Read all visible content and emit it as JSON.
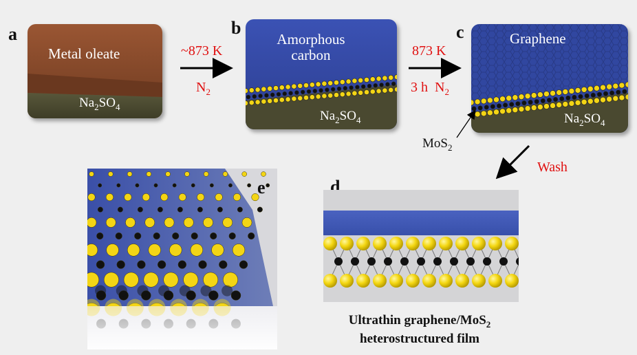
{
  "panels": {
    "a": {
      "letter": "a",
      "layer_top": "Metal oleate",
      "substrate": "Na2SO4",
      "substrate_base": "Na",
      "substrate_sub": "2",
      "substrate_rest": "SO",
      "substrate_sub2": "4"
    },
    "b": {
      "letter": "b",
      "layer_top_line1": "Amorphous",
      "layer_top_line2": "carbon",
      "substrate_base": "Na",
      "substrate_sub": "2",
      "substrate_rest": "SO",
      "substrate_sub2": "4"
    },
    "c": {
      "letter": "c",
      "layer_top": "Graphene",
      "substrate_base": "Na",
      "substrate_sub": "2",
      "substrate_rest": "SO",
      "substrate_sub2": "4"
    },
    "d": {
      "letter": "d"
    },
    "e": {
      "letter": "e"
    }
  },
  "steps": {
    "ab": {
      "temp": "~873 K",
      "gas_base": "N",
      "gas_sub": "2"
    },
    "bc": {
      "temp": "873 K",
      "time": "3 h",
      "gas_base": "N",
      "gas_sub": "2"
    },
    "cd": {
      "label": "Wash"
    }
  },
  "mos2_label": {
    "base": "MoS",
    "sub": "2"
  },
  "caption": {
    "line1_base": "Ultrathin graphene/MoS",
    "line1_sub": "2",
    "line2": "heterostructured film"
  },
  "colors": {
    "oleate": "#8a4a2a",
    "substrate": "#4b4a30",
    "carbon": "#3a4fa8",
    "graphene": "#2f3f8a",
    "sulfur": "#f3d515",
    "molybdenum": "#111111",
    "arrow_text": "#e01010"
  }
}
